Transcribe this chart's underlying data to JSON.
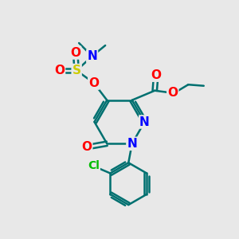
{
  "background_color": "#e8e8e8",
  "atom_colors": {
    "N": "#0000ff",
    "O": "#ff0000",
    "S": "#cccc00",
    "Cl": "#00bb00"
  },
  "bond_color": "#007070",
  "bond_width": 1.8,
  "figsize": [
    3.0,
    3.0
  ],
  "dpi": 100,
  "xlim": [
    0,
    10
  ],
  "ylim": [
    0,
    10
  ]
}
